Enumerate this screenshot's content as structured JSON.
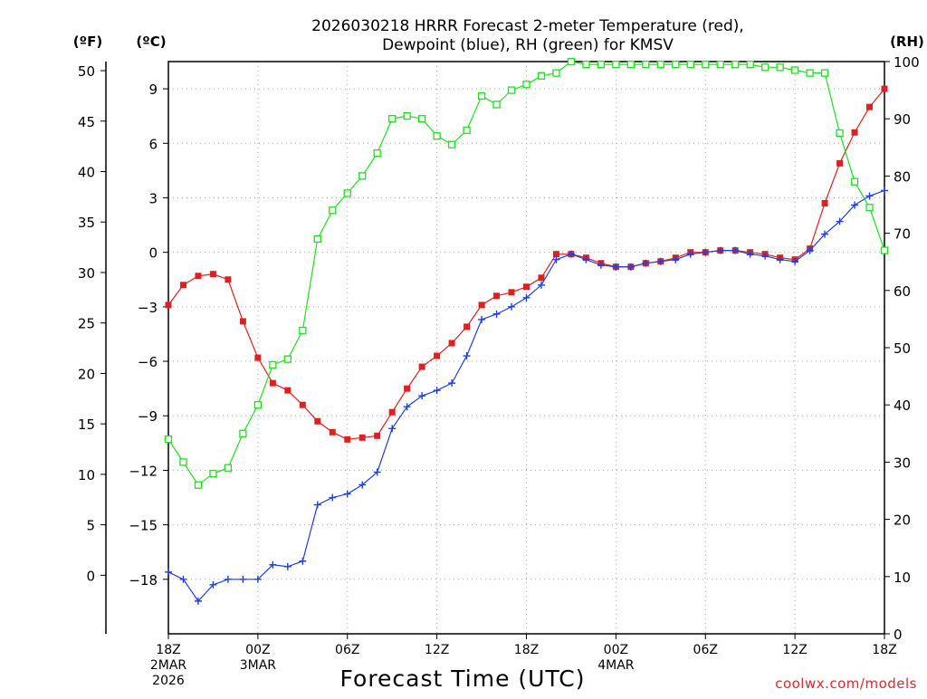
{
  "chart_data": {
    "type": "line",
    "title_line1": "2026030218 HRRR Forecast 2-meter Temperature (red),",
    "title_line2": "Dewpoint (blue), RH (green) for KMSV",
    "xlabel": "Forecast Time (UTC)",
    "credit": "coolwx.com/models",
    "unit_fahrenheit": "(ºF)",
    "unit_celsius": "(ºC)",
    "unit_rh": "(RH)",
    "x_range_hours": [
      0,
      48
    ],
    "x_ticks": [
      {
        "hour": 0,
        "lines": [
          "18Z",
          "2MAR",
          "2026"
        ]
      },
      {
        "hour": 6,
        "lines": [
          "00Z",
          "3MAR"
        ]
      },
      {
        "hour": 12,
        "lines": [
          "06Z"
        ]
      },
      {
        "hour": 18,
        "lines": [
          "12Z"
        ]
      },
      {
        "hour": 24,
        "lines": [
          "18Z"
        ]
      },
      {
        "hour": 30,
        "lines": [
          "00Z",
          "4MAR"
        ]
      },
      {
        "hour": 36,
        "lines": [
          "06Z"
        ]
      },
      {
        "hour": 42,
        "lines": [
          "12Z"
        ]
      },
      {
        "hour": 48,
        "lines": [
          "18Z"
        ]
      }
    ],
    "y_celsius": {
      "range": [
        -21,
        10.5
      ],
      "ticks": [
        "9",
        "6",
        "3",
        "0",
        "−3",
        "−6",
        "−9",
        "−12",
        "−15",
        "−18"
      ]
    },
    "y_fahrenheit": {
      "ticks": [
        "50",
        "45",
        "40",
        "35",
        "30",
        "25",
        "20",
        "15",
        "10",
        "5",
        "0"
      ]
    },
    "y_rh": {
      "range": [
        0,
        100
      ],
      "ticks": [
        "100",
        "90",
        "80",
        "70",
        "60",
        "50",
        "40",
        "30",
        "20",
        "10",
        "0"
      ]
    },
    "series": [
      {
        "name": "Temperature",
        "unit": "C",
        "color": "#e02020",
        "marker": "filled-square",
        "values": [
          -2.9,
          -1.8,
          -1.3,
          -1.2,
          -1.5,
          -3.8,
          -5.8,
          -7.2,
          -7.6,
          -8.4,
          -9.3,
          -9.9,
          -10.3,
          -10.2,
          -10.1,
          -8.8,
          -7.5,
          -6.3,
          -5.7,
          -5.0,
          -4.1,
          -2.9,
          -2.4,
          -2.2,
          -1.9,
          -1.4,
          -0.1,
          -0.1,
          -0.3,
          -0.6,
          -0.8,
          -0.8,
          -0.6,
          -0.5,
          -0.3,
          0.0,
          0.0,
          0.1,
          0.1,
          0.0,
          -0.1,
          -0.3,
          -0.4,
          0.2,
          2.7,
          4.9,
          6.6,
          8.0,
          9.0
        ]
      },
      {
        "name": "Dewpoint",
        "unit": "C",
        "color": "#2040e0",
        "marker": "plus",
        "values": [
          -17.6,
          -18.0,
          -19.2,
          -18.3,
          -18.0,
          -18.0,
          -18.0,
          -17.2,
          -17.3,
          -17.0,
          -13.9,
          -13.5,
          -13.3,
          -12.8,
          -12.1,
          -9.7,
          -8.5,
          -7.9,
          -7.6,
          -7.2,
          -5.7,
          -3.7,
          -3.4,
          -3.0,
          -2.5,
          -1.8,
          -0.4,
          -0.1,
          -0.4,
          -0.7,
          -0.8,
          -0.8,
          -0.6,
          -0.5,
          -0.4,
          -0.1,
          0.0,
          0.1,
          0.1,
          -0.1,
          -0.2,
          -0.4,
          -0.5,
          0.1,
          1.0,
          1.7,
          2.6,
          3.1,
          3.4
        ]
      },
      {
        "name": "RH",
        "unit": "%",
        "color": "#20e020",
        "marker": "open-square",
        "values": [
          34,
          30,
          26,
          28,
          29,
          35,
          40,
          47,
          48,
          53,
          69,
          74,
          77,
          80,
          84,
          90,
          90.5,
          90,
          87,
          85.5,
          88,
          94,
          92.5,
          95,
          96,
          97.5,
          98,
          100,
          99.5,
          99.5,
          99.5,
          99.5,
          99.5,
          99.5,
          99.5,
          99.5,
          99.5,
          99.5,
          99.5,
          99.5,
          99,
          99,
          98.5,
          98,
          98,
          87.5,
          79,
          74.5,
          67
        ]
      }
    ]
  }
}
